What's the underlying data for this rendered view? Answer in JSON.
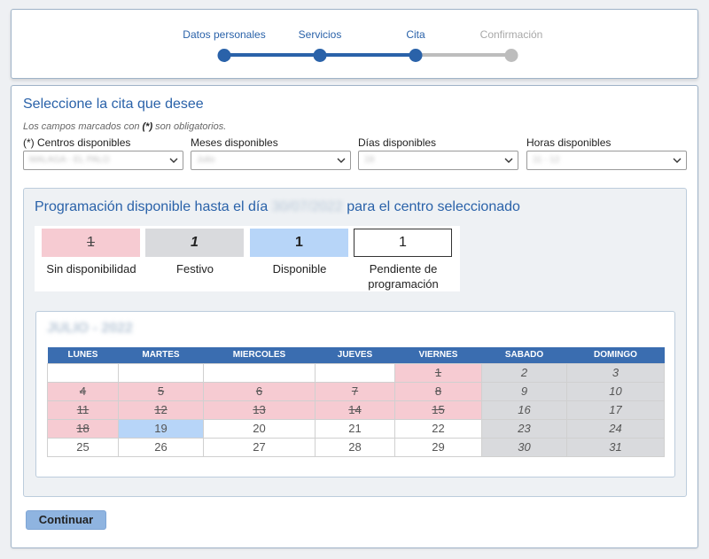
{
  "stepper": {
    "steps": [
      {
        "label": "Datos personales",
        "state": "done"
      },
      {
        "label": "Servicios",
        "state": "done"
      },
      {
        "label": "Cita",
        "state": "current"
      },
      {
        "label": "Confirmación",
        "state": "future"
      }
    ],
    "colors": {
      "active": "#2a62a9",
      "inactive": "#bdbdbd"
    }
  },
  "form": {
    "title": "Seleccione la cita que desee",
    "required_note_prefix": "Los campos marcados con ",
    "required_note_mark": "(*)",
    "required_note_suffix": " son obligatorios.",
    "fields": [
      {
        "label": "(*) Centros disponibles",
        "value": "MALAGA - EL PALO"
      },
      {
        "label": "Meses disponibles",
        "value": "Julio"
      },
      {
        "label": "Días disponibles",
        "value": "19"
      },
      {
        "label": "Horas disponibles",
        "value": "11 - 12"
      }
    ]
  },
  "availability": {
    "title_prefix": "Programación disponible hasta el día ",
    "title_date": "30/07/2022",
    "title_suffix": " para el centro seleccionado",
    "legend": [
      {
        "sample": "1",
        "label": "Sin disponibilidad",
        "color": "#f6cbd2"
      },
      {
        "sample": "1",
        "label": "Festivo",
        "color": "#d9dadd"
      },
      {
        "sample": "1",
        "label": "Disponible",
        "color": "#b7d5f8"
      },
      {
        "sample": "1",
        "label": "Pendiente de programación",
        "color": "#ffffff"
      }
    ]
  },
  "calendar": {
    "month_title": "JULIO - 2022",
    "weekdays": [
      "LUNES",
      "MARTES",
      "MIERCOLES",
      "JUEVES",
      "VIERNES",
      "SABADO",
      "DOMINGO"
    ],
    "weeks": [
      [
        {
          "day": "",
          "status": "empty"
        },
        {
          "day": "",
          "status": "empty"
        },
        {
          "day": "",
          "status": "empty"
        },
        {
          "day": "",
          "status": "empty"
        },
        {
          "day": "1",
          "status": "sin"
        },
        {
          "day": "2",
          "status": "fes"
        },
        {
          "day": "3",
          "status": "fes"
        }
      ],
      [
        {
          "day": "4",
          "status": "sin"
        },
        {
          "day": "5",
          "status": "sin"
        },
        {
          "day": "6",
          "status": "sin"
        },
        {
          "day": "7",
          "status": "sin"
        },
        {
          "day": "8",
          "status": "sin"
        },
        {
          "day": "9",
          "status": "fes"
        },
        {
          "day": "10",
          "status": "fes"
        }
      ],
      [
        {
          "day": "11",
          "status": "sin"
        },
        {
          "day": "12",
          "status": "sin"
        },
        {
          "day": "13",
          "status": "sin"
        },
        {
          "day": "14",
          "status": "sin"
        },
        {
          "day": "15",
          "status": "sin"
        },
        {
          "day": "16",
          "status": "fes"
        },
        {
          "day": "17",
          "status": "fes"
        }
      ],
      [
        {
          "day": "18",
          "status": "sin"
        },
        {
          "day": "19",
          "status": "disp"
        },
        {
          "day": "20",
          "status": "pend"
        },
        {
          "day": "21",
          "status": "pend"
        },
        {
          "day": "22",
          "status": "pend"
        },
        {
          "day": "23",
          "status": "fes"
        },
        {
          "day": "24",
          "status": "fes"
        }
      ],
      [
        {
          "day": "25",
          "status": "pend"
        },
        {
          "day": "26",
          "status": "pend"
        },
        {
          "day": "27",
          "status": "pend"
        },
        {
          "day": "28",
          "status": "pend"
        },
        {
          "day": "29",
          "status": "pend"
        },
        {
          "day": "30",
          "status": "fes"
        },
        {
          "day": "31",
          "status": "fes"
        }
      ]
    ]
  },
  "actions": {
    "continue_label": "Continuar"
  }
}
